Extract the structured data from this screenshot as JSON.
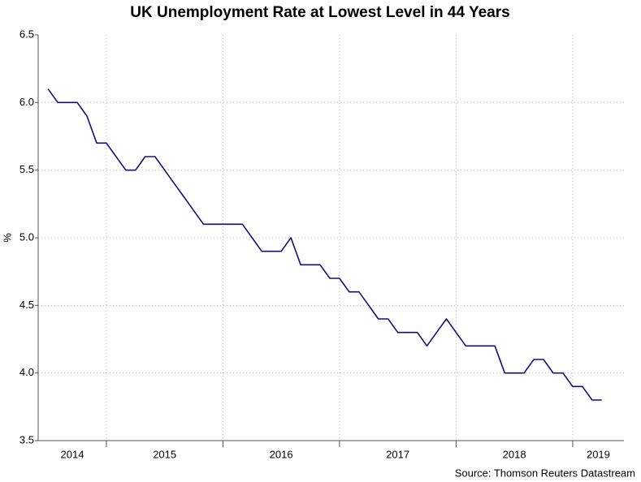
{
  "chart_data": {
    "type": "line",
    "title": "UK Unemployment Rate at Lowest Level in 44 Years",
    "y_label": "%",
    "source": "Source: Thomson Reuters Datastream",
    "x": [
      2014.5,
      2014.583,
      2014.667,
      2014.75,
      2014.833,
      2014.917,
      2015,
      2015.083,
      2015.167,
      2015.25,
      2015.333,
      2015.417,
      2015.5,
      2015.583,
      2015.667,
      2015.75,
      2015.833,
      2015.917,
      2016,
      2016.083,
      2016.167,
      2016.25,
      2016.333,
      2016.417,
      2016.5,
      2016.583,
      2016.667,
      2016.75,
      2016.833,
      2016.917,
      2017,
      2017.083,
      2017.167,
      2017.25,
      2017.333,
      2017.417,
      2017.5,
      2017.583,
      2017.667,
      2017.75,
      2017.833,
      2017.917,
      2018,
      2018.083,
      2018.167,
      2018.25,
      2018.333,
      2018.417,
      2018.5,
      2018.583,
      2018.667,
      2018.75,
      2018.833,
      2018.917,
      2019,
      2019.083,
      2019.167,
      2019.25
    ],
    "series": [
      {
        "name": "UK unemployment rate",
        "color": "#10107a",
        "values": [
          6.1,
          6.0,
          6.0,
          6.0,
          5.9,
          5.7,
          5.7,
          5.6,
          5.5,
          5.5,
          5.6,
          5.6,
          5.5,
          5.4,
          5.3,
          5.2,
          5.1,
          5.1,
          5.1,
          5.1,
          5.1,
          5.0,
          4.9,
          4.9,
          4.9,
          5.0,
          4.8,
          4.8,
          4.8,
          4.7,
          4.7,
          4.6,
          4.6,
          4.5,
          4.4,
          4.4,
          4.3,
          4.3,
          4.3,
          4.2,
          4.3,
          4.4,
          4.3,
          4.2,
          4.2,
          4.2,
          4.2,
          4.0,
          4.0,
          4.0,
          4.1,
          4.1,
          4.0,
          4.0,
          3.9,
          3.9,
          3.8,
          3.8
        ]
      }
    ],
    "xlim": [
      2014.415,
      2019.44
    ],
    "xticks": [
      2014,
      2015,
      2016,
      2017,
      2018,
      2019
    ],
    "ylim": [
      3.5,
      6.5
    ],
    "yticks": [
      3.5,
      {
        "value": 4,
        "label": "4.0"
      },
      4.5,
      {
        "value": 5,
        "label": "5.0"
      },
      5.5,
      {
        "value": 6,
        "label": "6.0"
      },
      6.5
    ],
    "grid": true
  }
}
